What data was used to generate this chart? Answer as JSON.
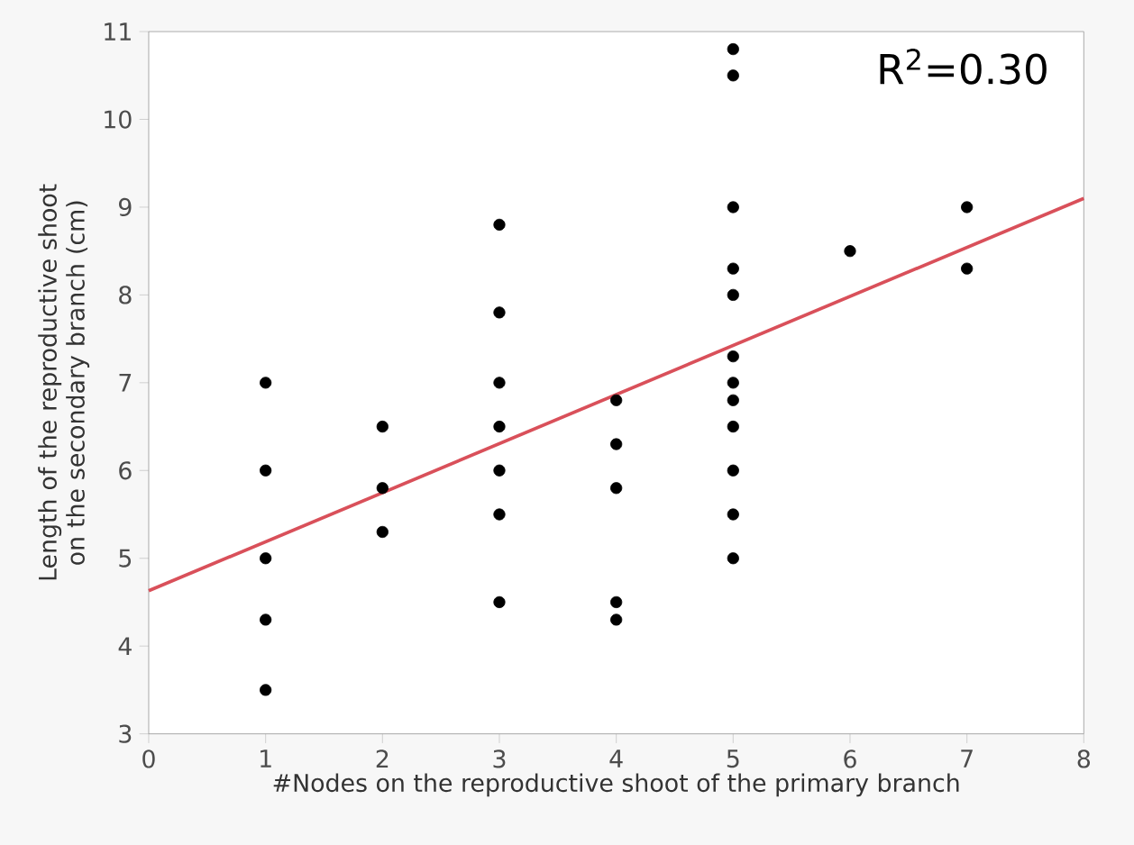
{
  "chart_data": {
    "type": "scatter",
    "xlabel": "#Nodes on the reproductive shoot of the primary branch",
    "ylabel": "Length of the reproductive shoot on the secondary branch (cm)",
    "xlim": [
      0,
      8
    ],
    "ylim": [
      3,
      11
    ],
    "xticks": [
      0,
      1,
      2,
      3,
      4,
      5,
      6,
      7,
      8
    ],
    "yticks": [
      3,
      4,
      5,
      6,
      7,
      8,
      9,
      10,
      11
    ],
    "grid": false,
    "annotations": [
      "R$^{2}$=0.30"
    ],
    "series": [
      {
        "color": "#000000",
        "marker": "circle",
        "x": [
          1,
          1,
          1,
          1,
          1,
          2,
          2,
          2,
          3,
          3,
          3,
          3,
          3,
          3,
          3,
          4,
          4,
          4,
          4,
          4,
          5,
          5,
          5,
          5,
          5,
          5,
          5,
          5,
          5,
          5,
          5,
          5,
          6,
          7,
          7
        ],
        "values": [
          7,
          6,
          5,
          4.3,
          3.5,
          6.5,
          5.8,
          5.3,
          8.8,
          7.8,
          7,
          6.5,
          6,
          5.5,
          4.5,
          6.8,
          6.3,
          5.8,
          4.5,
          4.3,
          10.8,
          10.5,
          9,
          8.3,
          8,
          7.3,
          7,
          6.8,
          6.5,
          6,
          5.5,
          5,
          8.5,
          9,
          8.3
        ]
      },
      {
        "type": "line",
        "color": "#d9505a",
        "marker": "none",
        "line_style": "solid",
        "x": [
          0,
          8
        ],
        "values": [
          4.63,
          9.1
        ]
      }
    ]
  }
}
